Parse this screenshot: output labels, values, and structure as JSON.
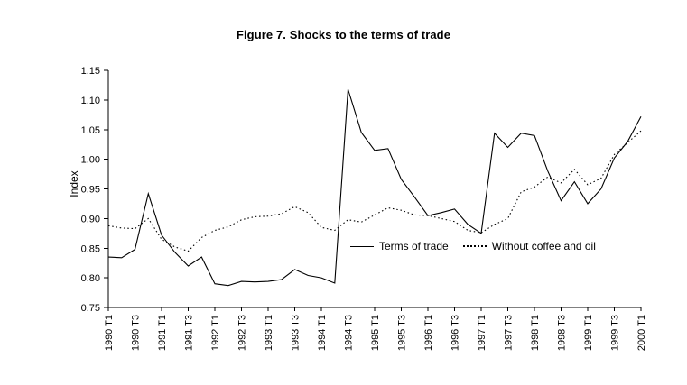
{
  "chart_data": {
    "type": "line",
    "title": "Figure 7. Shocks to the terms of trade",
    "ylabel": "Index",
    "ylim": [
      0.75,
      1.15
    ],
    "y_ticks": [
      0.75,
      0.8,
      0.85,
      0.9,
      0.95,
      1.0,
      1.05,
      1.1,
      1.15
    ],
    "x_tick_labels": [
      "1990 T1",
      "1990 T3",
      "1991 T1",
      "1991 T3",
      "1992 T1",
      "1992 T3",
      "1993 T1",
      "1993 T3",
      "1994 T1",
      "1994 T3",
      "1995 T1",
      "1995 T3",
      "1996 T1",
      "1996 T3",
      "1997 T1",
      "1997 T3",
      "1998 T1",
      "1998 T3",
      "1999 T1",
      "1999 T3",
      "2000 T1"
    ],
    "tick_every": 2,
    "grid": false,
    "legend_position": "inside-right-middle",
    "line_color": "#000000",
    "series": [
      {
        "name": "Terms of trade",
        "style": "solid",
        "values": [
          0.835,
          0.834,
          0.848,
          0.942,
          0.872,
          0.843,
          0.82,
          0.835,
          0.79,
          0.787,
          0.794,
          0.793,
          0.794,
          0.797,
          0.814,
          0.804,
          0.8,
          0.791,
          1.118,
          1.045,
          1.015,
          1.018,
          0.966,
          0.936,
          0.905,
          0.91,
          0.916,
          0.89,
          0.875,
          1.044,
          1.02,
          1.044,
          1.04,
          0.98,
          0.93,
          0.962,
          0.925,
          0.95,
          1.002,
          1.03,
          1.072
        ]
      },
      {
        "name": "Without coffee and oil",
        "style": "dotted",
        "values": [
          0.888,
          0.884,
          0.883,
          0.9,
          0.865,
          0.852,
          0.845,
          0.868,
          0.88,
          0.886,
          0.898,
          0.903,
          0.904,
          0.908,
          0.92,
          0.91,
          0.885,
          0.88,
          0.898,
          0.894,
          0.906,
          0.918,
          0.914,
          0.906,
          0.905,
          0.9,
          0.895,
          0.88,
          0.876,
          0.89,
          0.9,
          0.945,
          0.953,
          0.97,
          0.96,
          0.983,
          0.957,
          0.968,
          1.008,
          1.028,
          1.048
        ]
      }
    ]
  }
}
